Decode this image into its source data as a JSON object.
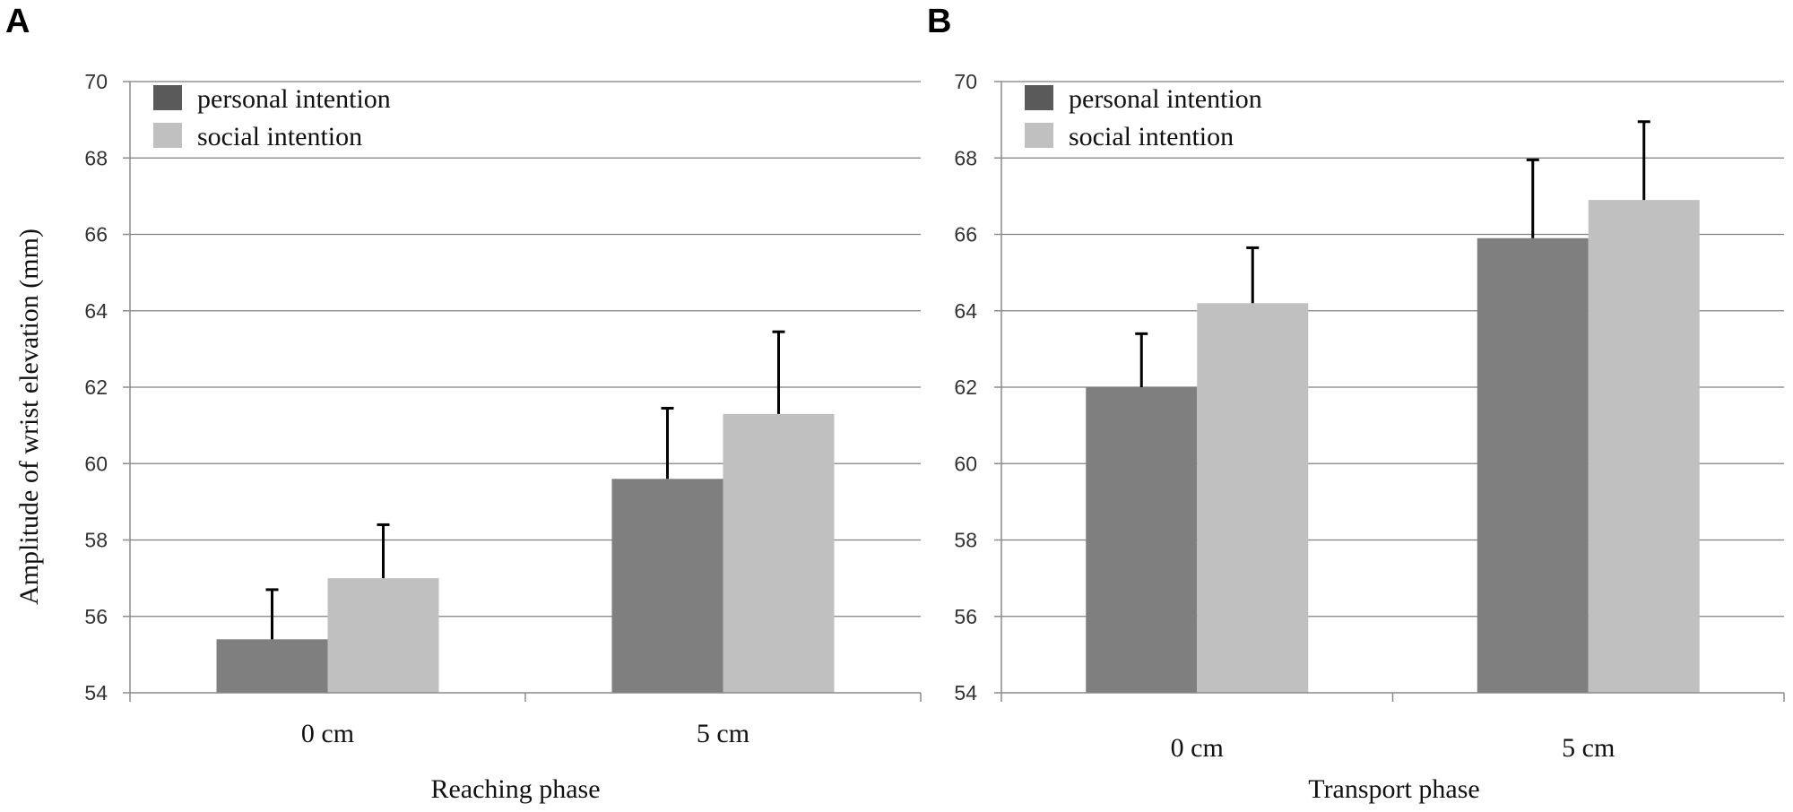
{
  "figure": {
    "ylabel": "Amplitude of wrist elevation (mm)"
  },
  "colors": {
    "personal": "#7f7f7f",
    "social": "#c0c0c0",
    "legend_personal": "#5a5a5a",
    "gridline": "#7f7f7f",
    "axis": "#8c8c8c",
    "errorbar": "#000000"
  },
  "chart_data": [
    {
      "type": "bar",
      "panel": "A",
      "title": "",
      "xlabel": "Reaching phase",
      "ylabel": "Amplitude of wrist elevation (mm)",
      "categories": [
        "0 cm",
        "5 cm"
      ],
      "ylim": [
        54,
        70
      ],
      "yticks": [
        "54",
        "56",
        "58",
        "60",
        "62",
        "64",
        "66",
        "68",
        "70"
      ],
      "grid": true,
      "legend_position": "top-left",
      "series": [
        {
          "name": "personal intention",
          "values": [
            55.4,
            59.6
          ],
          "errors": [
            1.3,
            1.85
          ]
        },
        {
          "name": "social intention",
          "values": [
            57.0,
            61.3
          ],
          "errors": [
            1.4,
            2.15
          ]
        }
      ]
    },
    {
      "type": "bar",
      "panel": "B",
      "title": "",
      "xlabel": "Transport phase",
      "ylabel": "",
      "categories": [
        "0 cm",
        "5 cm"
      ],
      "ylim": [
        54,
        70
      ],
      "yticks": [
        "54",
        "56",
        "58",
        "60",
        "62",
        "64",
        "66",
        "68",
        "70"
      ],
      "grid": true,
      "legend_position": "top-left",
      "series": [
        {
          "name": "personal intention",
          "values": [
            62.0,
            65.9
          ],
          "errors": [
            1.4,
            2.05
          ]
        },
        {
          "name": "social intention",
          "values": [
            64.2,
            66.9
          ],
          "errors": [
            1.45,
            2.05
          ]
        }
      ]
    }
  ]
}
